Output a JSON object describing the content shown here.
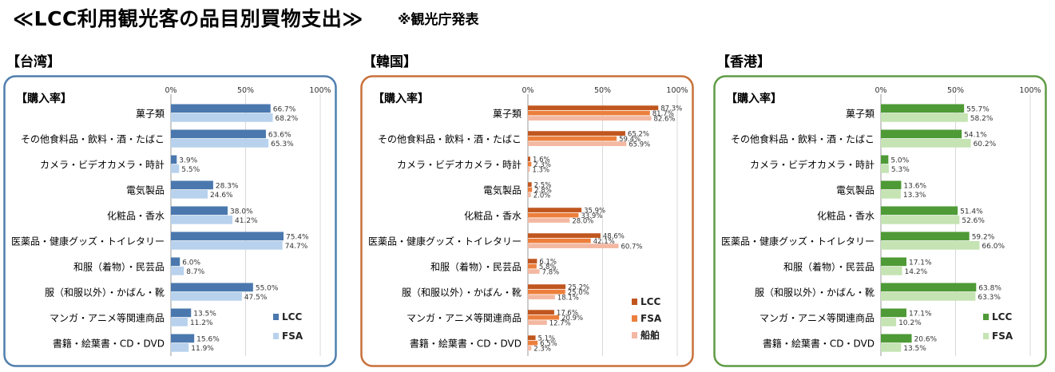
{
  "title": "≪LCC利用観光客の品目別買物支出≫",
  "note": "※観光庁発表",
  "charts": [
    {
      "region": "【台湾】",
      "frame_color": "#4f7fae"
    },
    {
      "region": "【韓国】",
      "frame_color": "#c8703a"
    },
    {
      "region": "【香港】",
      "frame_color": "#5f9b45"
    }
  ],
  "chart_data": [
    {
      "type": "bar",
      "orientation": "horizontal",
      "region": "【台湾】",
      "subtitle": "【購入率】",
      "ticks": [
        "0%",
        "50%",
        "100%"
      ],
      "xlim": [
        0,
        100
      ],
      "categories": [
        "菓子類",
        "その他食料品・飲料・酒・たばこ",
        "カメラ・ビデオカメラ・時計",
        "電気製品",
        "化粧品・香水",
        "医薬品・健康グッズ・トイレタリー",
        "和服（着物）・民芸品",
        "服（和服以外）・かばん・靴",
        "マンガ・アニメ等関連商品",
        "書籍・絵葉書・CD・DVD"
      ],
      "series": [
        {
          "name": "LCC",
          "color": "#4a78ae",
          "values": [
            66.7,
            63.6,
            3.9,
            28.3,
            38.0,
            75.4,
            6.0,
            55.0,
            13.5,
            15.6
          ],
          "labels": [
            "66.7%",
            "63.6%",
            "3.9%",
            "28.3%",
            "38.0%",
            "75.4%",
            "6.0%",
            "55.0%",
            "13.5%",
            "15.6%"
          ]
        },
        {
          "name": "FSA",
          "color": "#b8d2ed",
          "values": [
            68.2,
            65.3,
            5.5,
            24.6,
            41.2,
            74.7,
            8.7,
            47.5,
            11.2,
            11.9
          ],
          "labels": [
            "68.2%",
            "65.3%",
            "5.5%",
            "24.6%",
            "41.2%",
            "74.7%",
            "8.7%",
            "47.5%",
            "11.2%",
            "11.9%"
          ]
        }
      ],
      "legend": "bottom-right"
    },
    {
      "type": "bar",
      "orientation": "horizontal",
      "region": "【韓国】",
      "subtitle": "【購入率】",
      "ticks": [
        "0%",
        "50%",
        "100%"
      ],
      "xlim": [
        0,
        100
      ],
      "categories": [
        "菓子類",
        "その他食料品・飲料・酒・たばこ",
        "カメラ・ビデオカメラ・時計",
        "電気製品",
        "化粧品・香水",
        "医薬品・健康グッズ・トイレタリー",
        "和服（着物）・民芸品",
        "服（和服以外）・かばん・靴",
        "マンガ・アニメ等関連商品",
        "書籍・絵葉書・CD・DVD"
      ],
      "series": [
        {
          "name": "LCC",
          "color": "#c0561f",
          "values": [
            87.3,
            65.2,
            1.6,
            2.5,
            35.9,
            48.6,
            6.1,
            25.2,
            17.6,
            5.1
          ],
          "labels": [
            "87.3%",
            "65.2%",
            "1.6%",
            "2.5%",
            "35.9%",
            "48.6%",
            "6.1%",
            "25.2%",
            "17.6%",
            "5.1%"
          ]
        },
        {
          "name": "FSA",
          "color": "#ec7f3c",
          "values": [
            81.7,
            59.4,
            2.3,
            2.8,
            33.9,
            42.1,
            5.8,
            25.0,
            20.9,
            6.5
          ],
          "labels": [
            "81.7%",
            "59.4%",
            "2.3%",
            "2.8%",
            "33.9%",
            "42.1%",
            "5.8%",
            "25.0%",
            "20.9%",
            "6.5%"
          ]
        },
        {
          "name": "船舶",
          "color": "#f3b8a2",
          "values": [
            82.6,
            65.9,
            1.3,
            2.0,
            28.0,
            60.7,
            7.8,
            18.1,
            12.7,
            2.3
          ],
          "labels": [
            "82.6%",
            "65.9%",
            "1.3%",
            "2.0%",
            "28.0%",
            "60.7%",
            "7.8%",
            "18.1%",
            "12.7%",
            "2.3%"
          ]
        }
      ],
      "legend": "bottom-right"
    },
    {
      "type": "bar",
      "orientation": "horizontal",
      "region": "【香港】",
      "subtitle": "【購入率】",
      "ticks": [
        "0%",
        "50%",
        "100%"
      ],
      "xlim": [
        0,
        100
      ],
      "categories": [
        "菓子類",
        "その他食料品・飲料・酒・たばこ",
        "カメラ・ビデオカメラ・時計",
        "電気製品",
        "化粧品・香水",
        "医薬品・健康グッズ・トイレタリー",
        "和服（着物）・民芸品",
        "服（和服以外）・かばん・靴",
        "マンガ・アニメ等関連商品",
        "書籍・絵葉書・CD・DVD"
      ],
      "series": [
        {
          "name": "LCC",
          "color": "#4e9a36",
          "values": [
            55.7,
            54.1,
            5.0,
            13.6,
            51.4,
            59.2,
            17.1,
            63.8,
            17.1,
            20.6
          ],
          "labels": [
            "55.7%",
            "54.1%",
            "5.0%",
            "13.6%",
            "51.4%",
            "59.2%",
            "17.1%",
            "63.8%",
            "17.1%",
            "20.6%"
          ]
        },
        {
          "name": "FSA",
          "color": "#c5e3b3",
          "values": [
            58.2,
            60.2,
            5.3,
            13.3,
            52.6,
            66.0,
            14.2,
            63.3,
            10.2,
            13.5
          ],
          "labels": [
            "58.2%",
            "60.2%",
            "5.3%",
            "13.3%",
            "52.6%",
            "66.0%",
            "14.2%",
            "63.3%",
            "10.2%",
            "13.5%"
          ]
        }
      ],
      "legend": "bottom-right"
    }
  ]
}
